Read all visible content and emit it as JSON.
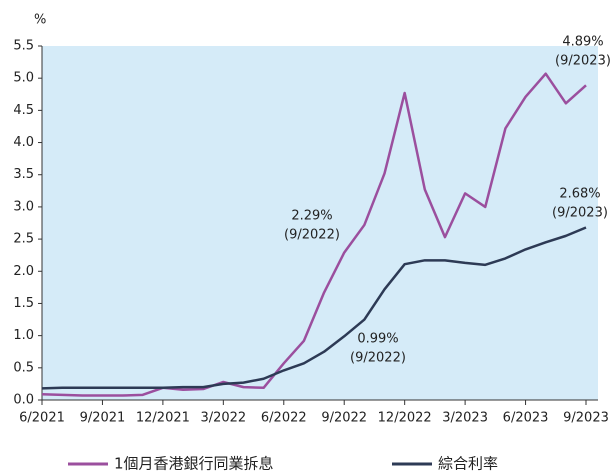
{
  "chart_data": {
    "type": "line",
    "unit": "%",
    "categories": [
      "6/2021",
      null,
      null,
      "9/2021",
      null,
      null,
      "12/2021",
      null,
      null,
      "3/2022",
      null,
      null,
      "6/2022",
      null,
      null,
      "9/2022",
      null,
      null,
      "12/2022",
      null,
      null,
      "3/2023",
      null,
      null,
      "6/2023",
      null,
      null,
      "9/2023"
    ],
    "series": [
      {
        "name": "1個月香港銀行同業拆息",
        "color": "#9b4f9e",
        "values": [
          0.09,
          0.08,
          0.07,
          0.07,
          0.07,
          0.08,
          0.19,
          0.16,
          0.17,
          0.28,
          0.2,
          0.19,
          0.57,
          0.92,
          1.67,
          2.29,
          2.72,
          3.52,
          4.77,
          3.27,
          2.53,
          3.21,
          3.0,
          4.22,
          4.71,
          5.07,
          4.61,
          4.89
        ]
      },
      {
        "name": "綜合利率",
        "color": "#2d3a55",
        "values": [
          0.18,
          0.19,
          0.19,
          0.19,
          0.19,
          0.19,
          0.19,
          0.2,
          0.2,
          0.25,
          0.27,
          0.33,
          0.46,
          0.57,
          0.75,
          0.99,
          1.25,
          1.72,
          2.11,
          2.17,
          2.17,
          2.13,
          2.1,
          2.2,
          2.34,
          2.45,
          2.55,
          2.68
        ]
      }
    ],
    "ylim": [
      0,
      5.5
    ],
    "yticks": [
      {
        "value": 0,
        "label": "0.0"
      },
      0.5,
      {
        "value": 1,
        "label": "1.0"
      },
      1.5,
      {
        "value": 2,
        "label": "2.0"
      },
      2.5,
      {
        "value": 3,
        "label": "3.0"
      },
      3.5,
      {
        "value": 4,
        "label": "4.0"
      },
      4.5,
      {
        "value": 5,
        "label": "5.0"
      },
      5.5
    ],
    "annotations": [
      {
        "lines": [
          "4.89%",
          "(9/2023)"
        ]
      },
      {
        "lines": [
          "2.68%",
          "(9/2023)"
        ]
      },
      {
        "lines": [
          "2.29%",
          "(9/2022)"
        ]
      },
      {
        "lines": [
          "0.99%",
          "(9/2022)"
        ]
      }
    ]
  }
}
